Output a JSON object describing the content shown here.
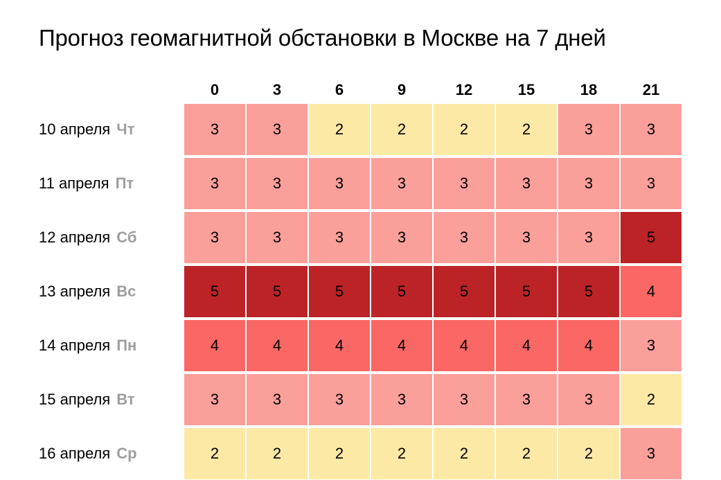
{
  "title": "Прогноз геомагнитной обстановки в Москве на 7 дней",
  "colors": {
    "2": "#fde9a6",
    "3": "#fb9f9b",
    "4": "#fa6764",
    "5": "#bb2327",
    "separator": "#ffffff"
  },
  "chart_data": {
    "type": "heatmap",
    "title": "Прогноз геомагнитной обстановки в Москве на 7 дней",
    "x": [
      "0",
      "3",
      "6",
      "9",
      "12",
      "15",
      "18",
      "21"
    ],
    "rows": [
      {
        "date": "10 апреля",
        "dow": "Чт",
        "values": [
          3,
          3,
          2,
          2,
          2,
          2,
          3,
          3
        ]
      },
      {
        "date": "11 апреля",
        "dow": "Пт",
        "values": [
          3,
          3,
          3,
          3,
          3,
          3,
          3,
          3
        ]
      },
      {
        "date": "12 апреля",
        "dow": "Сб",
        "values": [
          3,
          3,
          3,
          3,
          3,
          3,
          3,
          5
        ]
      },
      {
        "date": "13 апреля",
        "dow": "Вс",
        "values": [
          5,
          5,
          5,
          5,
          5,
          5,
          5,
          4
        ]
      },
      {
        "date": "14 апреля",
        "dow": "Пн",
        "values": [
          4,
          4,
          4,
          4,
          4,
          4,
          4,
          3
        ]
      },
      {
        "date": "15 апреля",
        "dow": "Вт",
        "values": [
          3,
          3,
          3,
          3,
          3,
          3,
          3,
          2
        ]
      },
      {
        "date": "16 апреля",
        "dow": "Ср",
        "values": [
          2,
          2,
          2,
          2,
          2,
          2,
          2,
          3
        ]
      }
    ]
  }
}
